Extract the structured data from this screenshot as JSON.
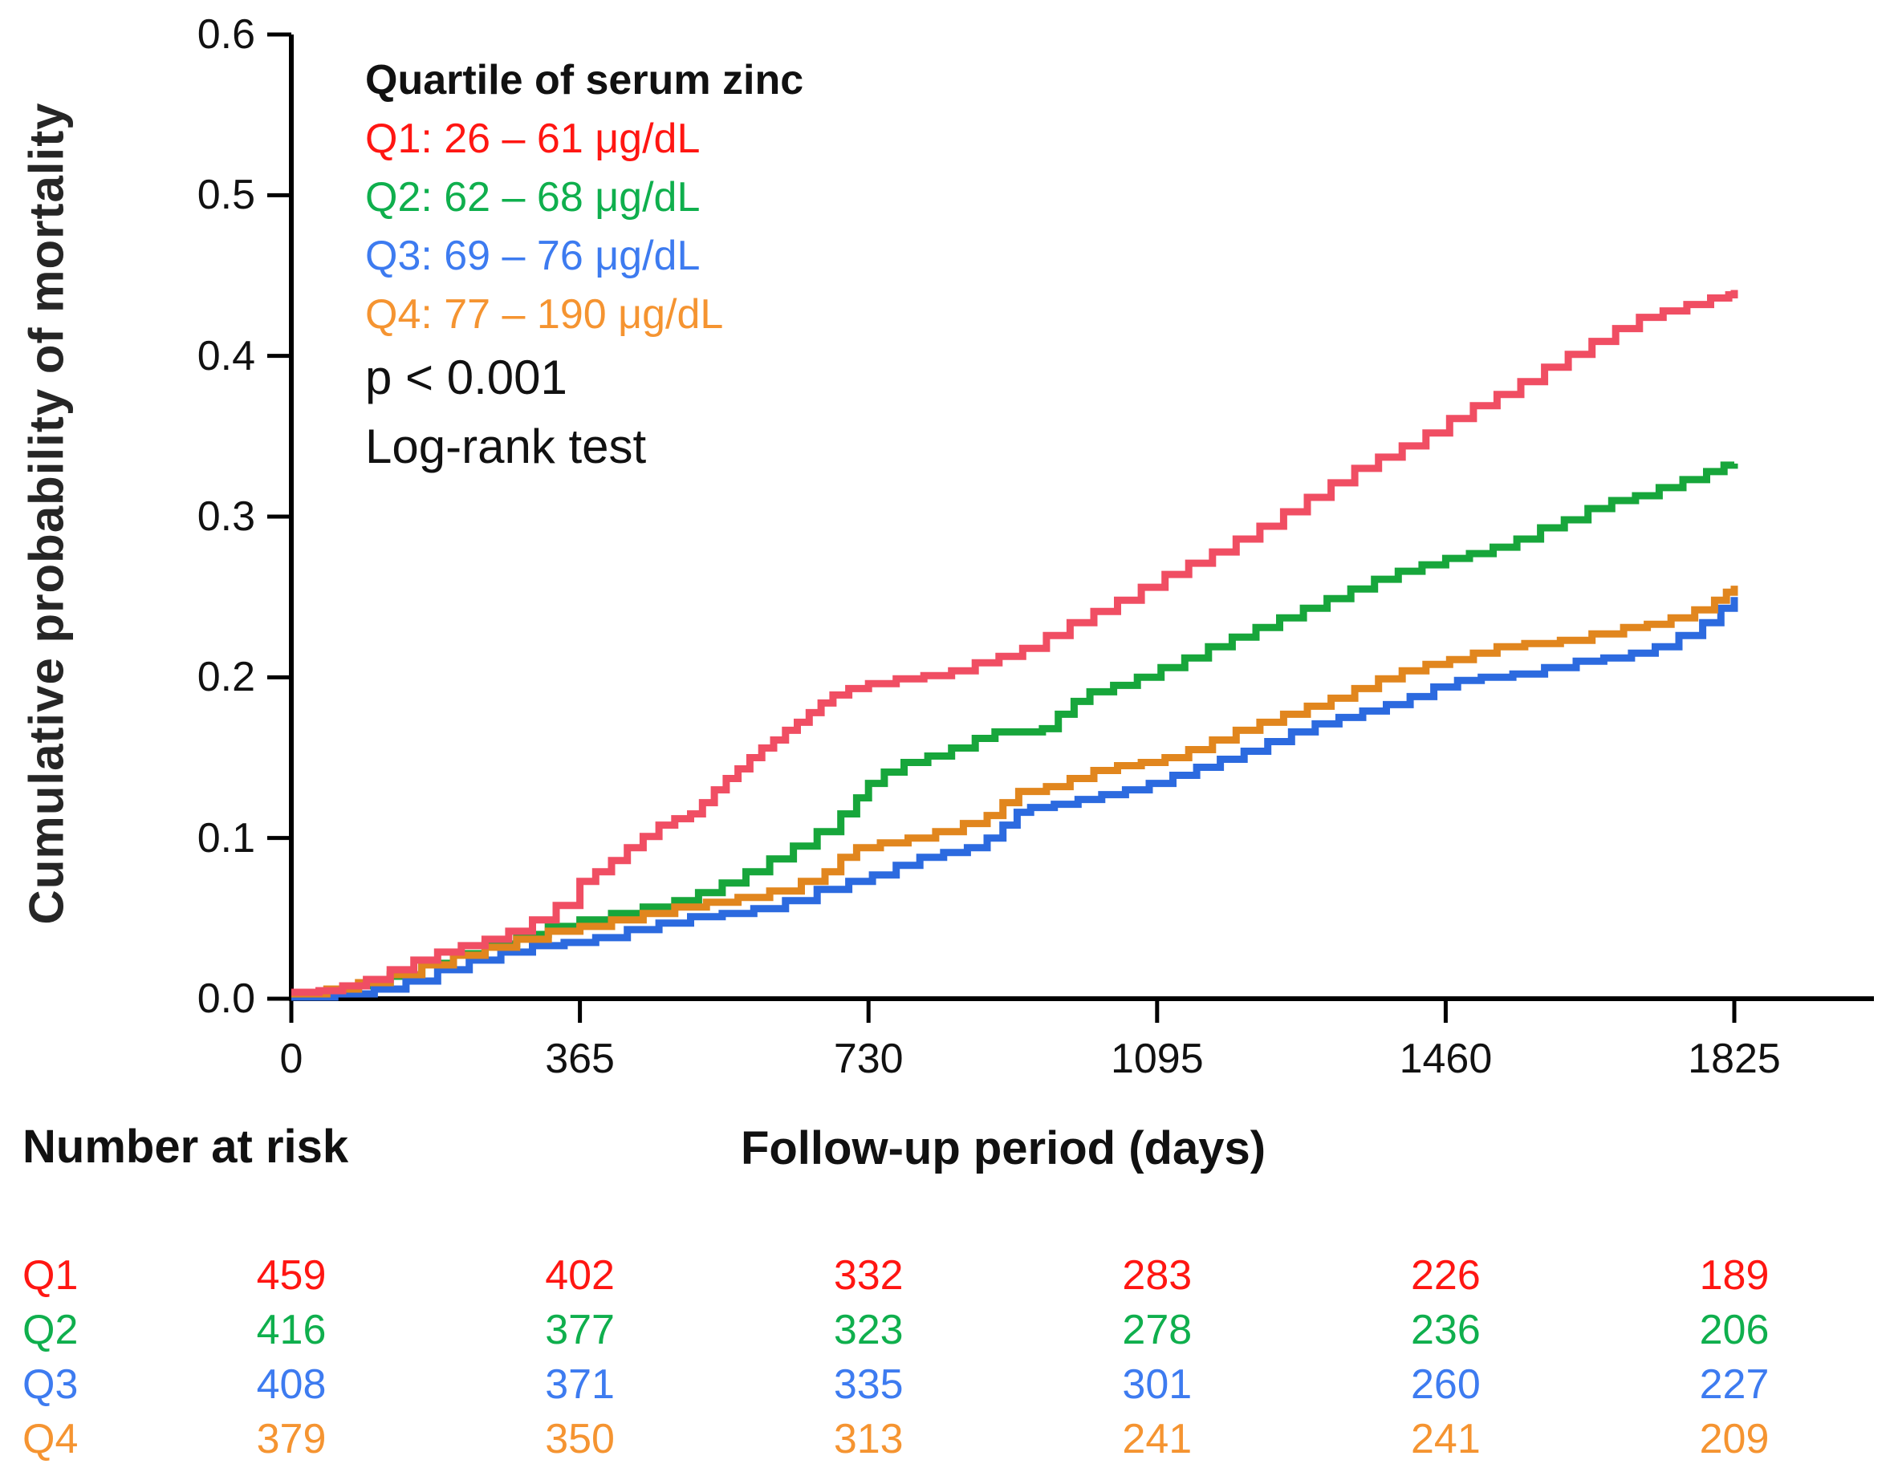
{
  "figure": {
    "y_axis_title": "Cumulative probability of mortality",
    "x_axis_title": "Follow-up period (days)",
    "legend_title": "Quartile of serum zinc",
    "p_value": "p < 0.001",
    "test_name": "Log-rank test",
    "risk_table_title": "Number at risk"
  },
  "chart_data": {
    "type": "line",
    "subtype": "kaplan-meier-step-curves",
    "title": "",
    "xlabel": "Follow-up period (days)",
    "ylabel": "Cumulative probability of mortality",
    "xlim": [
      0,
      2000
    ],
    "ylim": [
      0.0,
      0.6
    ],
    "x_ticks": [
      0,
      365,
      730,
      1095,
      1460,
      1825
    ],
    "y_ticks": [
      "0.0",
      "0.1",
      "0.2",
      "0.3",
      "0.4",
      "0.5",
      "0.6"
    ],
    "grid": false,
    "legend_position": "top-left-inside",
    "annotations": [
      "p < 0.001",
      "Log-rank test"
    ],
    "series": [
      {
        "name": "Q1",
        "label": "Q1: 26 – 61 μg/dL",
        "curve_color": "#F04E63",
        "text_color": "#FF1612",
        "points": [
          [
            0,
            0.004
          ],
          [
            35,
            0.005
          ],
          [
            65,
            0.008
          ],
          [
            95,
            0.012
          ],
          [
            125,
            0.018
          ],
          [
            155,
            0.024
          ],
          [
            185,
            0.029
          ],
          [
            215,
            0.033
          ],
          [
            245,
            0.037
          ],
          [
            275,
            0.042
          ],
          [
            305,
            0.049
          ],
          [
            335,
            0.058
          ],
          [
            365,
            0.073
          ],
          [
            385,
            0.079
          ],
          [
            405,
            0.086
          ],
          [
            425,
            0.094
          ],
          [
            445,
            0.101
          ],
          [
            465,
            0.108
          ],
          [
            485,
            0.112
          ],
          [
            505,
            0.115
          ],
          [
            520,
            0.122
          ],
          [
            535,
            0.13
          ],
          [
            550,
            0.137
          ],
          [
            565,
            0.143
          ],
          [
            580,
            0.15
          ],
          [
            595,
            0.156
          ],
          [
            610,
            0.161
          ],
          [
            625,
            0.167
          ],
          [
            640,
            0.172
          ],
          [
            655,
            0.178
          ],
          [
            670,
            0.184
          ],
          [
            685,
            0.189
          ],
          [
            705,
            0.193
          ],
          [
            730,
            0.196
          ],
          [
            765,
            0.199
          ],
          [
            800,
            0.201
          ],
          [
            835,
            0.204
          ],
          [
            865,
            0.209
          ],
          [
            895,
            0.213
          ],
          [
            925,
            0.218
          ],
          [
            955,
            0.226
          ],
          [
            985,
            0.234
          ],
          [
            1015,
            0.241
          ],
          [
            1045,
            0.248
          ],
          [
            1075,
            0.256
          ],
          [
            1105,
            0.264
          ],
          [
            1135,
            0.271
          ],
          [
            1165,
            0.278
          ],
          [
            1195,
            0.286
          ],
          [
            1225,
            0.294
          ],
          [
            1255,
            0.303
          ],
          [
            1285,
            0.312
          ],
          [
            1315,
            0.321
          ],
          [
            1345,
            0.33
          ],
          [
            1375,
            0.337
          ],
          [
            1405,
            0.344
          ],
          [
            1435,
            0.352
          ],
          [
            1465,
            0.361
          ],
          [
            1495,
            0.369
          ],
          [
            1525,
            0.376
          ],
          [
            1555,
            0.384
          ],
          [
            1585,
            0.393
          ],
          [
            1615,
            0.401
          ],
          [
            1645,
            0.409
          ],
          [
            1675,
            0.417
          ],
          [
            1705,
            0.424
          ],
          [
            1735,
            0.428
          ],
          [
            1765,
            0.432
          ],
          [
            1795,
            0.436
          ],
          [
            1818,
            0.438
          ],
          [
            1825,
            0.441
          ]
        ]
      },
      {
        "name": "Q2",
        "label": "Q2: 62 – 68 μg/dL",
        "curve_color": "#17A63B",
        "text_color": "#0FAF4D",
        "points": [
          [
            0,
            0.002
          ],
          [
            45,
            0.004
          ],
          [
            85,
            0.008
          ],
          [
            125,
            0.014
          ],
          [
            165,
            0.022
          ],
          [
            205,
            0.028
          ],
          [
            245,
            0.034
          ],
          [
            285,
            0.04
          ],
          [
            325,
            0.045
          ],
          [
            365,
            0.049
          ],
          [
            405,
            0.053
          ],
          [
            445,
            0.057
          ],
          [
            485,
            0.061
          ],
          [
            515,
            0.066
          ],
          [
            545,
            0.072
          ],
          [
            575,
            0.079
          ],
          [
            605,
            0.087
          ],
          [
            635,
            0.095
          ],
          [
            665,
            0.104
          ],
          [
            695,
            0.115
          ],
          [
            715,
            0.125
          ],
          [
            730,
            0.134
          ],
          [
            750,
            0.141
          ],
          [
            775,
            0.147
          ],
          [
            805,
            0.151
          ],
          [
            835,
            0.156
          ],
          [
            865,
            0.162
          ],
          [
            890,
            0.166
          ],
          [
            950,
            0.168
          ],
          [
            970,
            0.177
          ],
          [
            990,
            0.185
          ],
          [
            1010,
            0.191
          ],
          [
            1040,
            0.195
          ],
          [
            1070,
            0.2
          ],
          [
            1100,
            0.206
          ],
          [
            1130,
            0.212
          ],
          [
            1160,
            0.219
          ],
          [
            1190,
            0.225
          ],
          [
            1220,
            0.231
          ],
          [
            1250,
            0.237
          ],
          [
            1280,
            0.243
          ],
          [
            1310,
            0.249
          ],
          [
            1340,
            0.255
          ],
          [
            1370,
            0.261
          ],
          [
            1400,
            0.266
          ],
          [
            1430,
            0.27
          ],
          [
            1460,
            0.274
          ],
          [
            1490,
            0.277
          ],
          [
            1520,
            0.281
          ],
          [
            1550,
            0.286
          ],
          [
            1580,
            0.293
          ],
          [
            1610,
            0.298
          ],
          [
            1640,
            0.305
          ],
          [
            1670,
            0.31
          ],
          [
            1700,
            0.313
          ],
          [
            1730,
            0.318
          ],
          [
            1760,
            0.323
          ],
          [
            1790,
            0.328
          ],
          [
            1812,
            0.332
          ],
          [
            1825,
            0.333
          ]
        ]
      },
      {
        "name": "Q3",
        "label": "Q3: 69 – 76 μg/dL",
        "curve_color": "#2C6ADF",
        "text_color": "#3D7BF0",
        "points": [
          [
            0,
            0.001
          ],
          [
            55,
            0.003
          ],
          [
            105,
            0.006
          ],
          [
            145,
            0.011
          ],
          [
            185,
            0.018
          ],
          [
            225,
            0.024
          ],
          [
            265,
            0.029
          ],
          [
            305,
            0.033
          ],
          [
            345,
            0.035
          ],
          [
            385,
            0.038
          ],
          [
            425,
            0.043
          ],
          [
            465,
            0.047
          ],
          [
            505,
            0.051
          ],
          [
            545,
            0.053
          ],
          [
            585,
            0.056
          ],
          [
            625,
            0.061
          ],
          [
            665,
            0.068
          ],
          [
            705,
            0.073
          ],
          [
            735,
            0.077
          ],
          [
            765,
            0.083
          ],
          [
            795,
            0.088
          ],
          [
            825,
            0.091
          ],
          [
            855,
            0.094
          ],
          [
            880,
            0.1
          ],
          [
            900,
            0.108
          ],
          [
            918,
            0.116
          ],
          [
            935,
            0.119
          ],
          [
            965,
            0.121
          ],
          [
            995,
            0.124
          ],
          [
            1025,
            0.127
          ],
          [
            1055,
            0.13
          ],
          [
            1085,
            0.134
          ],
          [
            1115,
            0.139
          ],
          [
            1145,
            0.144
          ],
          [
            1175,
            0.149
          ],
          [
            1205,
            0.154
          ],
          [
            1235,
            0.16
          ],
          [
            1265,
            0.166
          ],
          [
            1295,
            0.171
          ],
          [
            1325,
            0.175
          ],
          [
            1355,
            0.179
          ],
          [
            1385,
            0.183
          ],
          [
            1415,
            0.188
          ],
          [
            1445,
            0.194
          ],
          [
            1475,
            0.198
          ],
          [
            1505,
            0.2
          ],
          [
            1545,
            0.202
          ],
          [
            1585,
            0.206
          ],
          [
            1625,
            0.21
          ],
          [
            1660,
            0.212
          ],
          [
            1695,
            0.215
          ],
          [
            1725,
            0.219
          ],
          [
            1755,
            0.226
          ],
          [
            1785,
            0.234
          ],
          [
            1808,
            0.243
          ],
          [
            1825,
            0.25
          ]
        ]
      },
      {
        "name": "Q4",
        "label": "Q4: 77 – 190 μg/dL",
        "curve_color": "#E1861E",
        "text_color": "#F59431",
        "points": [
          [
            0,
            0.003
          ],
          [
            45,
            0.006
          ],
          [
            85,
            0.01
          ],
          [
            125,
            0.015
          ],
          [
            165,
            0.021
          ],
          [
            205,
            0.027
          ],
          [
            245,
            0.032
          ],
          [
            285,
            0.037
          ],
          [
            325,
            0.042
          ],
          [
            365,
            0.045
          ],
          [
            405,
            0.049
          ],
          [
            445,
            0.053
          ],
          [
            485,
            0.057
          ],
          [
            525,
            0.06
          ],
          [
            565,
            0.063
          ],
          [
            605,
            0.067
          ],
          [
            645,
            0.073
          ],
          [
            675,
            0.079
          ],
          [
            695,
            0.088
          ],
          [
            715,
            0.094
          ],
          [
            745,
            0.097
          ],
          [
            780,
            0.1
          ],
          [
            815,
            0.104
          ],
          [
            850,
            0.109
          ],
          [
            880,
            0.114
          ],
          [
            900,
            0.122
          ],
          [
            920,
            0.129
          ],
          [
            955,
            0.132
          ],
          [
            985,
            0.137
          ],
          [
            1015,
            0.142
          ],
          [
            1045,
            0.145
          ],
          [
            1075,
            0.147
          ],
          [
            1105,
            0.15
          ],
          [
            1135,
            0.155
          ],
          [
            1165,
            0.161
          ],
          [
            1195,
            0.167
          ],
          [
            1225,
            0.172
          ],
          [
            1255,
            0.177
          ],
          [
            1285,
            0.182
          ],
          [
            1315,
            0.187
          ],
          [
            1345,
            0.193
          ],
          [
            1375,
            0.199
          ],
          [
            1405,
            0.204
          ],
          [
            1435,
            0.208
          ],
          [
            1465,
            0.211
          ],
          [
            1495,
            0.215
          ],
          [
            1525,
            0.219
          ],
          [
            1560,
            0.221
          ],
          [
            1605,
            0.223
          ],
          [
            1645,
            0.227
          ],
          [
            1685,
            0.231
          ],
          [
            1715,
            0.233
          ],
          [
            1745,
            0.237
          ],
          [
            1775,
            0.242
          ],
          [
            1800,
            0.248
          ],
          [
            1815,
            0.253
          ],
          [
            1825,
            0.257
          ]
        ]
      }
    ],
    "number_at_risk": {
      "title": "Number at risk",
      "times": [
        0,
        365,
        730,
        1095,
        1460,
        1825
      ],
      "rows": [
        {
          "name": "Q1",
          "counts": [
            459,
            402,
            332,
            283,
            226,
            189
          ]
        },
        {
          "name": "Q2",
          "counts": [
            416,
            377,
            323,
            278,
            236,
            206
          ]
        },
        {
          "name": "Q3",
          "counts": [
            408,
            371,
            335,
            301,
            260,
            227
          ]
        },
        {
          "name": "Q4",
          "counts": [
            379,
            350,
            313,
            241,
            241,
            209
          ]
        }
      ]
    },
    "axis_color": "#000000"
  }
}
